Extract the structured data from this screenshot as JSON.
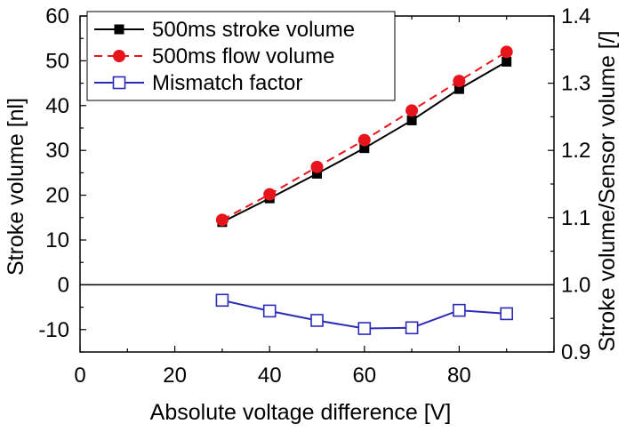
{
  "chart_data": {
    "type": "line",
    "title": "",
    "xlabel": "Absolute voltage difference [V]",
    "ylabel": "Stroke volume [nl]",
    "y2label": "Stroke volume/Sensor volume [/]",
    "xlim": [
      0,
      100
    ],
    "ylim": [
      -15,
      60
    ],
    "y2lim": [
      0.9,
      1.4
    ],
    "x_ticks": [
      "0",
      "20",
      "40",
      "60",
      "80"
    ],
    "y_ticks": [
      "-10",
      "0",
      "10",
      "20",
      "30",
      "40",
      "50",
      "60"
    ],
    "y2_ticks": [
      "0.9",
      "1.0",
      "1.1",
      "1.2",
      "1.3",
      "1.4"
    ],
    "grid": false,
    "zero_line": 0,
    "legend_position": "top-left",
    "x": [
      30,
      40,
      50,
      60,
      70,
      80,
      90
    ],
    "series": [
      {
        "name": "500ms stroke volume",
        "axis": "left",
        "color": "#000000",
        "marker": "filled-square",
        "line": "solid",
        "values": [
          14.0,
          19.3,
          24.8,
          30.5,
          36.7,
          43.7,
          49.8
        ]
      },
      {
        "name": "500ms flow volume",
        "axis": "left",
        "color": "#e8141b",
        "marker": "filled-circle",
        "line": "dashed",
        "values": [
          14.5,
          20.2,
          26.3,
          32.3,
          38.9,
          45.5,
          52.0
        ]
      },
      {
        "name": "Mismatch factor",
        "axis": "right",
        "color": "#2b2bb8",
        "marker": "open-square",
        "line": "solid",
        "values": [
          0.977,
          0.961,
          0.947,
          0.935,
          0.936,
          0.962,
          0.957
        ]
      }
    ]
  }
}
